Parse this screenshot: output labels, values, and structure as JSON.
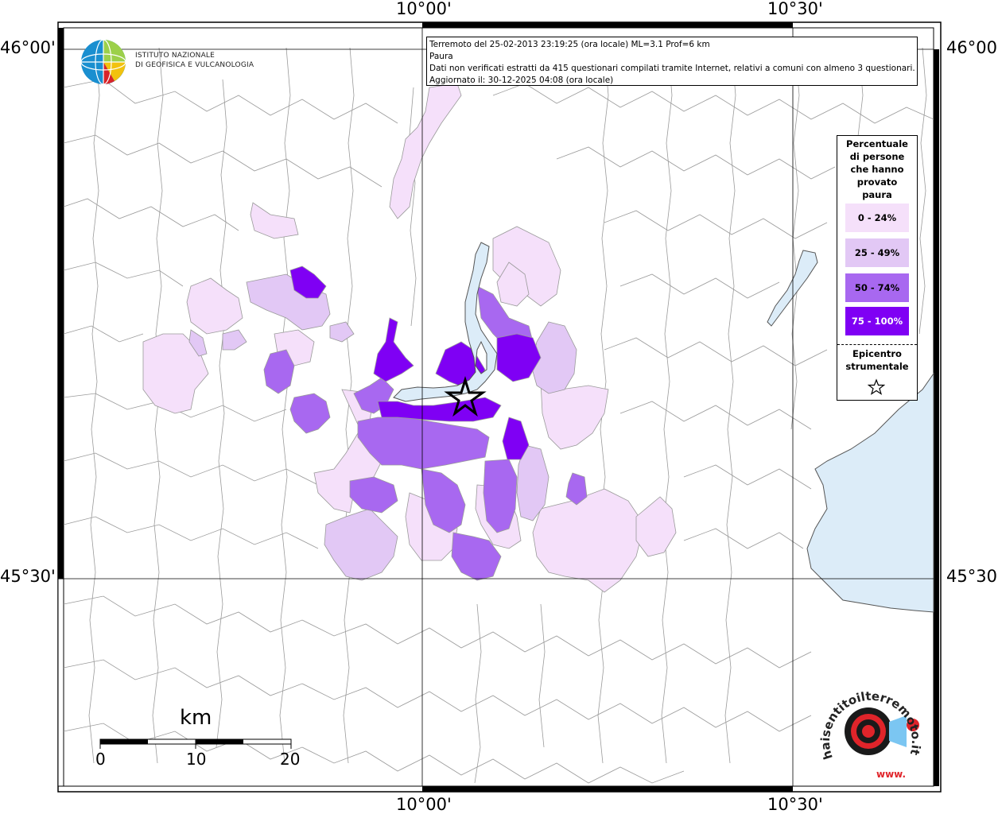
{
  "map": {
    "coords": {
      "top_lon_left": "10°00'",
      "top_lon_right": "10°30'",
      "bottom_lon_left": "10°00'",
      "bottom_lon_right": "10°30'",
      "lat_top_left": "46°00'",
      "lat_top_right": "46°00'",
      "lat_bottom_left": "45°30'",
      "lat_bottom_right": "45°30'"
    },
    "info": {
      "line1": "Terremoto del 25-02-2013 23:19:25 (ora locale) ML=3.1 Prof=6 km",
      "line2": "Paura",
      "line3": "Dati non verificati estratti da 415 questionari compilati tramite Internet, relativi a comuni con almeno 3 questionari.",
      "line4": "Aggiornato il: 30-12-2025 04:08 (ora locale)"
    },
    "logo": {
      "line1": "ISTITUTO NAZIONALE",
      "line2": "DI GEOFISICA E VULCANOLOGIA"
    },
    "legend": {
      "title_lines": [
        "Percentuale",
        "di persone",
        "che hanno",
        "provato",
        "paura"
      ],
      "items": [
        {
          "label": "0 - 24%",
          "color": "#f5e0fa",
          "text_color": "#000000"
        },
        {
          "label": "25 - 49%",
          "color": "#e2c8f5",
          "text_color": "#000000"
        },
        {
          "label": "50 - 74%",
          "color": "#a868f0",
          "text_color": "#000000"
        },
        {
          "label": "75 - 100%",
          "color": "#7f00f4",
          "text_color": "#ffffff"
        }
      ],
      "epicenter_lines": [
        "Epicentro",
        "strumentale"
      ],
      "star_icon": "star-outline-icon"
    },
    "scale": {
      "unit": "km",
      "ticks": [
        "0",
        "10",
        "20"
      ]
    },
    "brand": {
      "text": "haisentitoilterremoto.it",
      "url_text": "www."
    },
    "colors": {
      "lake": "#dcecf8",
      "border": "#9a9a9a",
      "frame": "#000000"
    }
  }
}
